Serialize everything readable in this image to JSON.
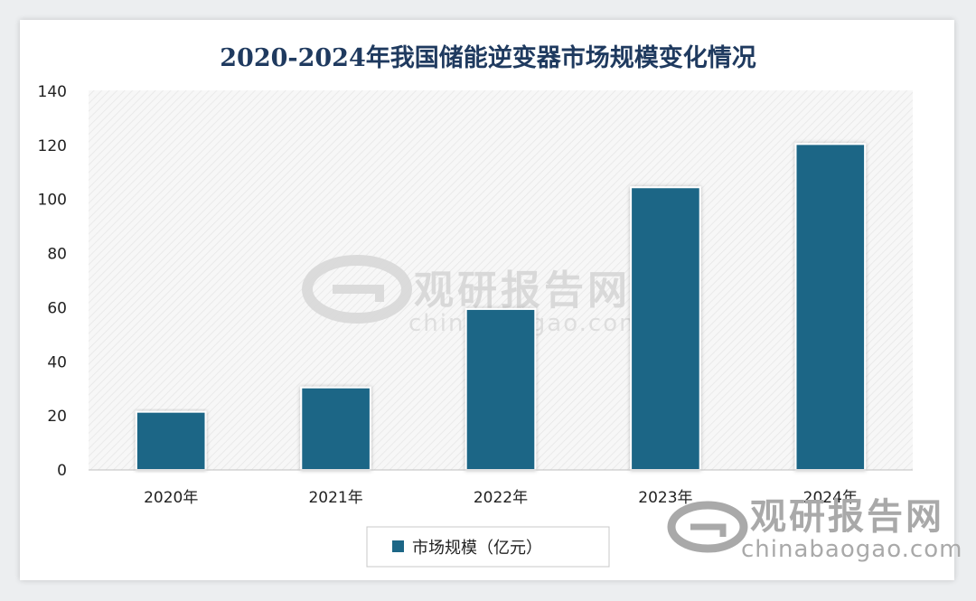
{
  "chart_data": {
    "type": "bar",
    "title": "2020-2024年我国储能逆变器市场规模变化情况",
    "categories": [
      "2020年",
      "2021年",
      "2022年",
      "2023年",
      "2024年"
    ],
    "series": [
      {
        "name": "市场规模（亿元）",
        "values": [
          21.5,
          30.5,
          59.5,
          104.5,
          120.5
        ],
        "color": "#1c6686"
      }
    ],
    "ylim": [
      0,
      140
    ],
    "yticks": [
      0,
      20,
      40,
      60,
      80,
      100,
      120,
      140
    ],
    "xlabel": "",
    "ylabel": "",
    "grid": false,
    "legend": "bottom-center"
  },
  "watermark": {
    "name": "观研报告网",
    "site": "chinabaogao.com"
  }
}
